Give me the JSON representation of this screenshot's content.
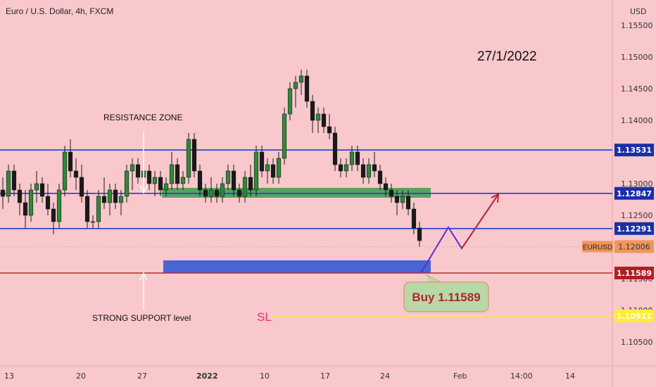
{
  "chart_data": {
    "type": "candlestick",
    "title": "Euro / U.S. Dollar, 4h, FXCM",
    "currency": "USD",
    "date_label": "27/1/2022",
    "y_ticks": [
      "1.15500",
      "1.15000",
      "1.14500",
      "1.14000",
      "1.13500",
      "1.13000",
      "1.12500",
      "1.12000",
      "1.11500",
      "1.11000",
      "1.10500"
    ],
    "x_ticks": [
      {
        "label": "13",
        "x": 6
      },
      {
        "label": "20",
        "x": 108
      },
      {
        "label": "27",
        "x": 195
      },
      {
        "label": "2022",
        "x": 279
      },
      {
        "label": "10",
        "x": 369
      },
      {
        "label": "17",
        "x": 455
      },
      {
        "label": "24",
        "x": 540
      },
      {
        "label": "Feb",
        "x": 644
      },
      {
        "label": "14:00",
        "x": 725
      },
      {
        "label": "14",
        "x": 803
      }
    ],
    "levels": [
      {
        "name": "resistance-upper",
        "value": 1.13531,
        "label": "1.13531",
        "color": "#1f3fd6",
        "badge": "#1a2fa8"
      },
      {
        "name": "resistance-lower",
        "value": 1.12847,
        "label": "1.12847",
        "color": "#1f3fd6",
        "badge": "#1a2fa8"
      },
      {
        "name": "support-mid",
        "value": 1.12291,
        "label": "1.12291",
        "color": "#1f3fd6",
        "badge": "#1a2fa8"
      },
      {
        "name": "strong-support",
        "value": 1.11589,
        "label": "1.11589",
        "color": "#c0262c",
        "badge": "#b01e26"
      },
      {
        "name": "stop-loss",
        "value": 1.10911,
        "label": "1.10911",
        "color": "#ffee33",
        "badge": "#ffee33"
      }
    ],
    "current_price": {
      "symbol": "EURUSD",
      "value": 1.12006,
      "label": "1.12006",
      "color": "#f0955c"
    },
    "annotations": {
      "resistance_zone": "RESISTANCE ZONE",
      "support_level": "STRONG SUPPORT level",
      "buy": "Buy 1.11589",
      "sl": "SL"
    },
    "candles": [
      [
        1.129,
        1.131,
        1.126,
        1.128
      ],
      [
        1.128,
        1.133,
        1.127,
        1.132
      ],
      [
        1.132,
        1.133,
        1.128,
        1.129
      ],
      [
        1.129,
        1.13,
        1.125,
        1.127
      ],
      [
        1.127,
        1.129,
        1.123,
        1.125
      ],
      [
        1.125,
        1.13,
        1.124,
        1.129
      ],
      [
        1.129,
        1.132,
        1.127,
        1.13
      ],
      [
        1.13,
        1.131,
        1.127,
        1.128
      ],
      [
        1.128,
        1.13,
        1.125,
        1.126
      ],
      [
        1.126,
        1.127,
        1.122,
        1.124
      ],
      [
        1.124,
        1.13,
        1.123,
        1.129
      ],
      [
        1.129,
        1.136,
        1.128,
        1.135
      ],
      [
        1.135,
        1.137,
        1.131,
        1.132
      ],
      [
        1.132,
        1.134,
        1.129,
        1.131
      ],
      [
        1.131,
        1.133,
        1.127,
        1.128
      ],
      [
        1.128,
        1.129,
        1.123,
        1.124
      ],
      [
        1.124,
        1.125,
        1.123,
        1.124
      ],
      [
        1.124,
        1.129,
        1.123,
        1.128
      ],
      [
        1.128,
        1.131,
        1.126,
        1.127
      ],
      [
        1.127,
        1.13,
        1.125,
        1.129
      ],
      [
        1.129,
        1.13,
        1.126,
        1.127
      ],
      [
        1.127,
        1.129,
        1.125,
        1.128
      ],
      [
        1.128,
        1.133,
        1.127,
        1.132
      ],
      [
        1.132,
        1.134,
        1.129,
        1.133
      ],
      [
        1.133,
        1.134,
        1.13,
        1.131
      ],
      [
        1.131,
        1.133,
        1.129,
        1.132
      ],
      [
        1.132,
        1.133,
        1.129,
        1.13
      ],
      [
        1.13,
        1.132,
        1.128,
        1.131
      ],
      [
        1.131,
        1.132,
        1.128,
        1.129
      ],
      [
        1.129,
        1.131,
        1.128,
        1.13
      ],
      [
        1.13,
        1.135,
        1.129,
        1.133
      ],
      [
        1.133,
        1.134,
        1.129,
        1.13
      ],
      [
        1.13,
        1.132,
        1.129,
        1.131
      ],
      [
        1.131,
        1.138,
        1.13,
        1.137
      ],
      [
        1.137,
        1.138,
        1.131,
        1.132
      ],
      [
        1.132,
        1.133,
        1.128,
        1.129
      ],
      [
        1.129,
        1.13,
        1.127,
        1.128
      ],
      [
        1.128,
        1.131,
        1.127,
        1.129
      ],
      [
        1.129,
        1.13,
        1.127,
        1.128
      ],
      [
        1.128,
        1.131,
        1.127,
        1.13
      ],
      [
        1.13,
        1.133,
        1.129,
        1.132
      ],
      [
        1.132,
        1.133,
        1.128,
        1.129
      ],
      [
        1.129,
        1.13,
        1.127,
        1.128
      ],
      [
        1.128,
        1.132,
        1.127,
        1.131
      ],
      [
        1.131,
        1.133,
        1.128,
        1.129
      ],
      [
        1.129,
        1.136,
        1.128,
        1.135
      ],
      [
        1.135,
        1.136,
        1.131,
        1.132
      ],
      [
        1.132,
        1.134,
        1.13,
        1.133
      ],
      [
        1.133,
        1.134,
        1.13,
        1.131
      ],
      [
        1.131,
        1.135,
        1.13,
        1.134
      ],
      [
        1.134,
        1.142,
        1.133,
        1.141
      ],
      [
        1.141,
        1.146,
        1.14,
        1.145
      ],
      [
        1.145,
        1.147,
        1.142,
        1.146
      ],
      [
        1.146,
        1.148,
        1.144,
        1.147
      ],
      [
        1.147,
        1.148,
        1.142,
        1.143
      ],
      [
        1.143,
        1.144,
        1.138,
        1.14
      ],
      [
        1.14,
        1.142,
        1.138,
        1.141
      ],
      [
        1.141,
        1.142,
        1.138,
        1.139
      ],
      [
        1.139,
        1.141,
        1.137,
        1.138
      ],
      [
        1.138,
        1.139,
        1.132,
        1.133
      ],
      [
        1.133,
        1.134,
        1.131,
        1.132
      ],
      [
        1.132,
        1.134,
        1.131,
        1.133
      ],
      [
        1.133,
        1.136,
        1.132,
        1.135
      ],
      [
        1.135,
        1.136,
        1.132,
        1.133
      ],
      [
        1.133,
        1.134,
        1.13,
        1.131
      ],
      [
        1.131,
        1.134,
        1.13,
        1.133
      ],
      [
        1.133,
        1.135,
        1.131,
        1.132
      ],
      [
        1.132,
        1.133,
        1.129,
        1.13
      ],
      [
        1.13,
        1.131,
        1.128,
        1.129
      ],
      [
        1.129,
        1.13,
        1.127,
        1.128
      ],
      [
        1.128,
        1.129,
        1.125,
        1.127
      ],
      [
        1.127,
        1.129,
        1.126,
        1.128
      ],
      [
        1.128,
        1.129,
        1.125,
        1.126
      ],
      [
        1.126,
        1.127,
        1.122,
        1.123
      ],
      [
        1.123,
        1.124,
        1.12,
        1.121
      ]
    ]
  }
}
